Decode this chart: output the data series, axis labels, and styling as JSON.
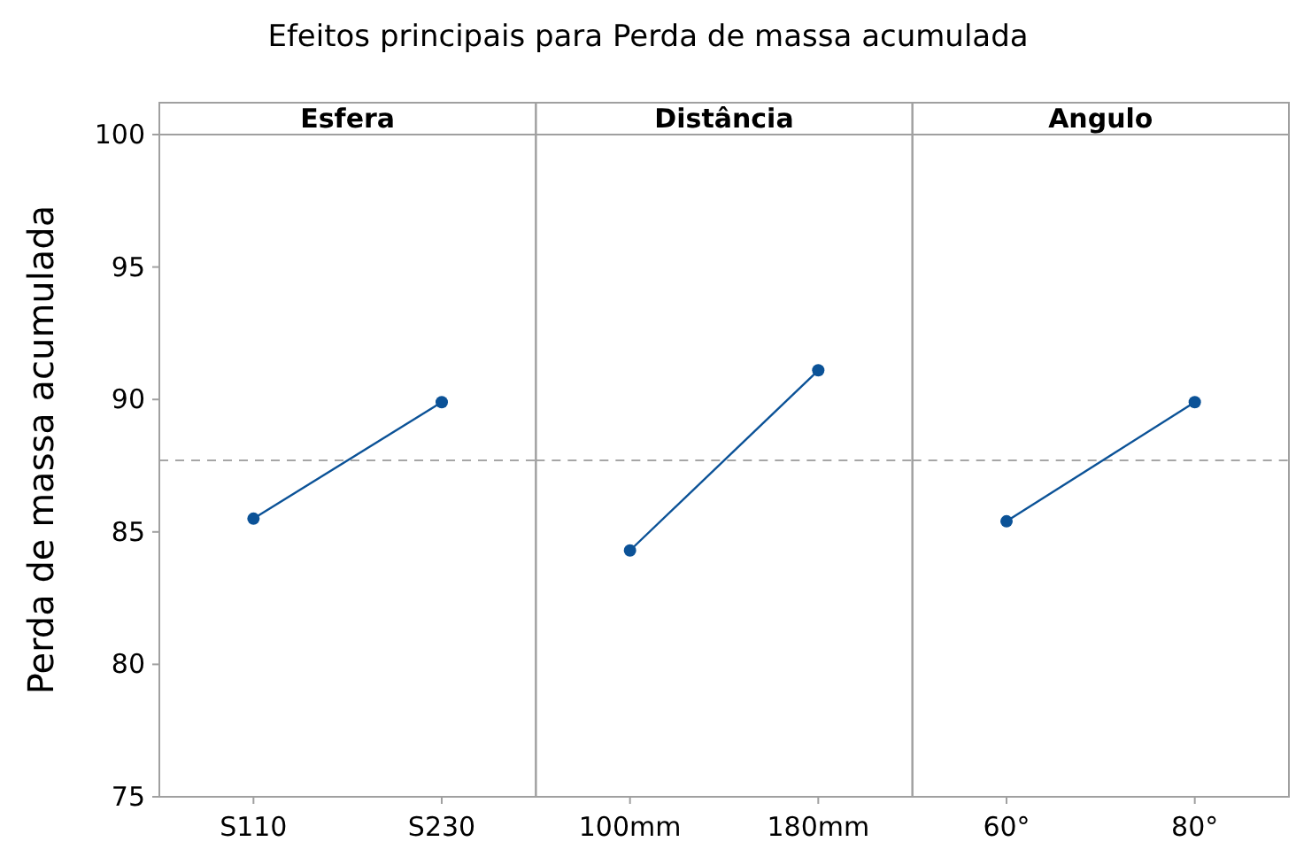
{
  "chart_data": [
    {
      "type": "line",
      "title": "Efeitos principais para Perda de massa acumulada",
      "subtitle": "Esfera",
      "ylabel": "Perda de massa acumulada",
      "categories": [
        "S110",
        "S230"
      ],
      "series": [
        {
          "color": "#0b5297",
          "values": [
            85.5,
            89.9
          ]
        }
      ],
      "ylim": [
        75,
        100
      ],
      "yticks": [
        75,
        80,
        85,
        90,
        95,
        100
      ],
      "ref_lines": [
        {
          "axis": "y",
          "value": 87.7,
          "color": "#a6a6a6",
          "line_style": "dashed"
        }
      ],
      "marker": "circle",
      "line_style": "solid",
      "grid": false
    },
    {
      "type": "line",
      "subtitle": "Distância",
      "categories": [
        "100mm",
        "180mm"
      ],
      "series": [
        {
          "color": "#0b5297",
          "values": [
            84.3,
            91.1
          ]
        }
      ],
      "ylim": [
        75,
        100
      ],
      "tick_labels": "x",
      "ref_lines": [
        {
          "axis": "y",
          "value": 87.7,
          "color": "#a6a6a6",
          "line_style": "dashed"
        }
      ],
      "marker": "circle",
      "line_style": "solid",
      "grid": false
    },
    {
      "type": "line",
      "subtitle": "Angulo",
      "categories": [
        "60°",
        "80°"
      ],
      "series": [
        {
          "color": "#0b5297",
          "values": [
            85.4,
            89.9
          ]
        }
      ],
      "ylim": [
        75,
        100
      ],
      "tick_labels": "x",
      "ref_lines": [
        {
          "axis": "y",
          "value": 87.7,
          "color": "#a6a6a6",
          "line_style": "dashed"
        }
      ],
      "marker": "circle",
      "line_style": "solid",
      "grid": false
    }
  ]
}
